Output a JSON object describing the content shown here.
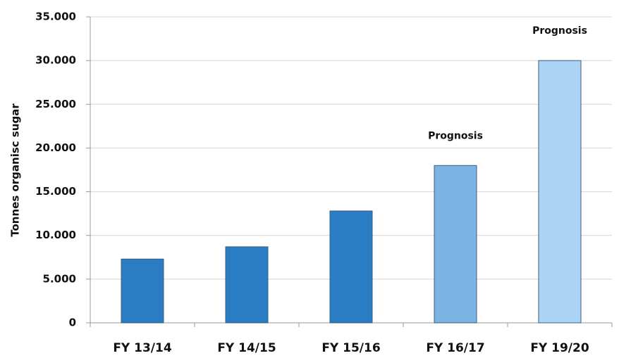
{
  "chart_data": {
    "type": "bar",
    "y_label": "Tonnes organisc sugar",
    "categories": [
      "FY 13/14",
      "FY 14/15",
      "FY 15/16",
      "FY 16/17",
      "FY 19/20"
    ],
    "values": [
      7300,
      8700,
      12800,
      18000,
      30000
    ],
    "colors": [
      "#2a7dc2",
      "#2a7dc2",
      "#2a7dc2",
      "#7db3e2",
      "#acd5f5"
    ],
    "annotations": [
      {
        "text": "Prognosis",
        "category": "FY 16/17"
      },
      {
        "text": "Prognosis",
        "category": "FY 19/20"
      }
    ],
    "ylim": [
      0,
      35000
    ],
    "yticks": [
      0,
      {
        "value": 5000,
        "label": "5.000"
      },
      {
        "value": 10000,
        "label": "10.000"
      },
      {
        "value": 15000,
        "label": "15.000"
      },
      {
        "value": 20000,
        "label": "20.000"
      },
      {
        "value": 25000,
        "label": "25.000"
      },
      {
        "value": 30000,
        "label": "30.000"
      },
      {
        "value": 35000,
        "label": "35.000"
      }
    ],
    "grid": true
  }
}
